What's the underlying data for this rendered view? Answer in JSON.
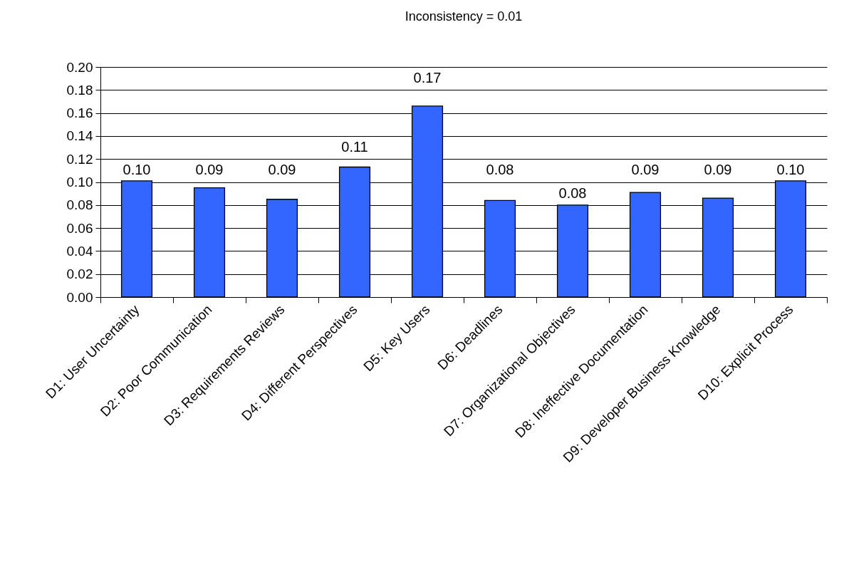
{
  "chart_data": {
    "type": "bar",
    "title": "Inconsistency = 0.01",
    "categories": [
      "D1: User Uncertainty",
      "D2: Poor Communication",
      "D3: Requirements Reviews",
      "D4: Different Perspectives",
      "D5: Key Users",
      "D6: Deadlines",
      "D7: Organizational Objectives",
      "D8: Ineffective Documentation",
      "D9: Developer Business Knowledge",
      "D10: Explicit Process"
    ],
    "values": [
      0.101,
      0.095,
      0.085,
      0.113,
      0.166,
      0.084,
      0.08,
      0.091,
      0.086,
      0.101
    ],
    "value_labels": [
      "0.10",
      "0.09",
      "0.09",
      "0.11",
      "0.17",
      "0.08",
      "0.08",
      "0.09",
      "0.09",
      "0.10"
    ],
    "color": "#3366ff",
    "ylim": [
      0,
      0.2
    ],
    "yticks": [
      {
        "value": 0,
        "label": "0.00"
      },
      {
        "value": 0.02,
        "label": "0.02"
      },
      {
        "value": 0.04,
        "label": "0.04"
      },
      {
        "value": 0.06,
        "label": "0.06"
      },
      {
        "value": 0.08,
        "label": "0.08"
      },
      {
        "value": 0.1,
        "label": "0.10"
      },
      {
        "value": 0.12,
        "label": "0.12"
      },
      {
        "value": 0.14,
        "label": "0.14"
      },
      {
        "value": 0.16,
        "label": "0.16"
      },
      {
        "value": 0.18,
        "label": "0.18"
      },
      {
        "value": 0.2,
        "label": "0.20"
      }
    ],
    "grid": "y"
  }
}
